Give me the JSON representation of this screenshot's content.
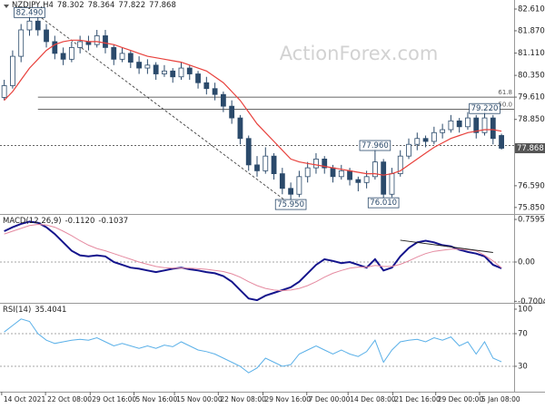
{
  "chart_data": [
    {
      "type": "candlestick",
      "title": "NZDJPY,H4",
      "header_values": [
        78.302,
        78.364,
        77.822,
        77.868
      ],
      "watermark": "ActionForex.com",
      "xlim": [
        -0.5,
        60.5
      ],
      "ylim": [
        75.628,
        82.826
      ],
      "yticks": [
        {
          "value": 82.61,
          "label": "82.610"
        },
        {
          "value": 81.87,
          "label": "81.870"
        },
        {
          "value": 81.11,
          "label": "81.110"
        },
        {
          "value": 80.35,
          "label": "80.350"
        },
        {
          "value": 79.61,
          "label": "79.610"
        },
        {
          "value": 78.85,
          "label": "78.850"
        },
        {
          "value": 76.59,
          "label": "76.590"
        },
        {
          "value": 75.85,
          "label": "75.850"
        }
      ],
      "last_price": 77.868,
      "up_color": "#ffffff",
      "down_color": "#2b4a6b",
      "wick_color": "#2b4a6b",
      "open": [
        79.6,
        80.0,
        81.0,
        81.9,
        82.2,
        81.9,
        81.5,
        81.1,
        80.9,
        81.3,
        81.5,
        81.4,
        81.7,
        81.3,
        80.9,
        81.1,
        80.8,
        80.6,
        80.7,
        80.4,
        80.5,
        80.3,
        80.6,
        80.4,
        80.1,
        79.9,
        79.7,
        79.3,
        78.9,
        78.2,
        77.3,
        77.1,
        77.6,
        77.0,
        76.5,
        76.3,
        76.9,
        77.2,
        77.5,
        77.2,
        76.9,
        77.1,
        76.8,
        76.7,
        76.9,
        77.4,
        76.3,
        77.0,
        77.6,
        78.0,
        78.2,
        78.1,
        78.4,
        78.5,
        78.8,
        78.6,
        78.9,
        78.4,
        78.9,
        78.302
      ],
      "high": [
        80.2,
        81.2,
        82.1,
        82.49,
        82.4,
        82.1,
        81.7,
        81.3,
        81.5,
        81.7,
        81.7,
        81.9,
        81.9,
        81.4,
        81.3,
        81.2,
        81.0,
        80.9,
        80.8,
        80.7,
        80.6,
        80.8,
        80.7,
        80.5,
        80.3,
        80.1,
        79.8,
        79.5,
        79.0,
        78.3,
        77.6,
        77.9,
        77.7,
        77.2,
        76.7,
        77.1,
        77.4,
        77.7,
        77.6,
        77.3,
        77.3,
        77.2,
        76.9,
        77.1,
        77.96,
        77.5,
        77.2,
        77.8,
        78.2,
        78.4,
        78.3,
        78.6,
        78.7,
        79.0,
        78.9,
        79.1,
        79.0,
        79.22,
        79.0,
        78.364
      ],
      "low": [
        79.5,
        79.9,
        80.8,
        81.7,
        81.7,
        81.3,
        80.9,
        80.7,
        80.8,
        81.1,
        81.2,
        81.3,
        81.1,
        80.7,
        80.8,
        80.6,
        80.4,
        80.4,
        80.2,
        80.3,
        80.1,
        80.2,
        80.2,
        79.9,
        79.7,
        79.5,
        79.1,
        78.7,
        78.0,
        77.1,
        76.9,
        77.0,
        76.8,
        76.3,
        75.95,
        76.2,
        76.7,
        77.0,
        77.0,
        76.7,
        76.8,
        76.6,
        76.4,
        76.5,
        76.8,
        76.01,
        76.2,
        76.9,
        77.5,
        77.8,
        77.9,
        78.0,
        78.2,
        78.4,
        78.4,
        78.5,
        78.2,
        78.3,
        78.0,
        77.822
      ],
      "close": [
        80.0,
        81.0,
        81.9,
        82.2,
        81.9,
        81.5,
        81.1,
        80.9,
        81.3,
        81.5,
        81.4,
        81.7,
        81.3,
        80.9,
        81.1,
        80.8,
        80.6,
        80.7,
        80.4,
        80.5,
        80.3,
        80.6,
        80.4,
        80.1,
        79.9,
        79.7,
        79.3,
        78.9,
        78.2,
        77.3,
        77.1,
        77.6,
        77.0,
        76.5,
        76.3,
        76.9,
        77.2,
        77.5,
        77.2,
        76.9,
        77.1,
        76.8,
        76.7,
        76.9,
        77.4,
        76.3,
        77.0,
        77.6,
        78.0,
        78.2,
        78.1,
        78.4,
        78.5,
        78.8,
        78.6,
        78.9,
        78.4,
        78.9,
        78.2,
        77.868
      ],
      "overlay": {
        "color": "#e8413c",
        "values": [
          79.5,
          79.8,
          80.2,
          80.6,
          80.9,
          81.2,
          81.4,
          81.5,
          81.55,
          81.55,
          81.5,
          81.5,
          81.45,
          81.4,
          81.3,
          81.2,
          81.1,
          81.0,
          80.95,
          80.9,
          80.85,
          80.8,
          80.7,
          80.6,
          80.5,
          80.3,
          80.1,
          79.8,
          79.5,
          79.1,
          78.7,
          78.4,
          78.1,
          77.8,
          77.5,
          77.4,
          77.35,
          77.3,
          77.25,
          77.2,
          77.15,
          77.1,
          77.05,
          77.0,
          77.0,
          76.95,
          77.0,
          77.1,
          77.3,
          77.5,
          77.7,
          77.9,
          78.05,
          78.2,
          78.3,
          78.4,
          78.45,
          78.5,
          78.5,
          78.45
        ]
      },
      "hlines": [
        {
          "value": 79.61,
          "label": "61.8",
          "start": 4
        },
        {
          "value": 79.2,
          "label": "50.0",
          "start": 4
        }
      ],
      "dashed_level": 77.96,
      "trendline": {
        "x": [
          4,
          34
        ],
        "y": [
          82.4,
          75.95
        ]
      },
      "points": [
        {
          "x": 3,
          "y": 82.49,
          "label": "82.490"
        },
        {
          "x": 34,
          "y": 75.95,
          "label": "75.950"
        },
        {
          "x": 44,
          "y": 77.96,
          "label": "77.960"
        },
        {
          "x": 45,
          "y": 76.01,
          "label": "76.010"
        },
        {
          "x": 57,
          "y": 79.22,
          "label": "79.220"
        }
      ]
    },
    {
      "type": "line",
      "title": "MACD(12,26,9)",
      "header_values": [
        {
          "value": -0.112,
          "label": "-0.1120"
        },
        -0.1037
      ],
      "xlim": [
        -0.5,
        60.5
      ],
      "ylim": [
        -0.711,
        0.824
      ],
      "yticks": [
        0.7595,
        {
          "value": 0,
          "label": "0.00"
        },
        -0.7004
      ],
      "zero_line": 0,
      "series": [
        {
          "color": "#14148c",
          "width": 2,
          "values": [
            0.55,
            0.62,
            0.68,
            0.72,
            0.7,
            0.62,
            0.5,
            0.35,
            0.2,
            0.12,
            0.1,
            0.12,
            0.1,
            0.0,
            -0.05,
            -0.1,
            -0.12,
            -0.15,
            -0.18,
            -0.15,
            -0.12,
            -0.1,
            -0.13,
            -0.15,
            -0.18,
            -0.2,
            -0.25,
            -0.35,
            -0.5,
            -0.65,
            -0.68,
            -0.6,
            -0.55,
            -0.5,
            -0.45,
            -0.35,
            -0.2,
            -0.05,
            0.05,
            0.02,
            -0.02,
            0.0,
            -0.05,
            -0.1,
            0.05,
            -0.15,
            -0.1,
            0.1,
            0.25,
            0.35,
            0.38,
            0.35,
            0.3,
            0.28,
            0.22,
            0.18,
            0.15,
            0.1,
            -0.05,
            -0.112
          ]
        },
        {
          "color": "#e58aa0",
          "width": 1,
          "values": [
            0.5,
            0.55,
            0.6,
            0.65,
            0.67,
            0.66,
            0.62,
            0.55,
            0.47,
            0.38,
            0.3,
            0.24,
            0.2,
            0.15,
            0.1,
            0.05,
            0.0,
            -0.04,
            -0.08,
            -0.1,
            -0.11,
            -0.11,
            -0.11,
            -0.12,
            -0.13,
            -0.15,
            -0.17,
            -0.21,
            -0.27,
            -0.35,
            -0.42,
            -0.47,
            -0.5,
            -0.51,
            -0.5,
            -0.47,
            -0.42,
            -0.35,
            -0.27,
            -0.2,
            -0.15,
            -0.11,
            -0.09,
            -0.09,
            -0.06,
            -0.08,
            -0.08,
            -0.04,
            0.02,
            0.09,
            0.15,
            0.19,
            0.21,
            0.23,
            0.23,
            0.22,
            0.2,
            0.12,
            0.02,
            -0.1037
          ]
        }
      ],
      "trendline": {
        "x": [
          47,
          58
        ],
        "y": [
          0.39,
          0.17
        ]
      }
    },
    {
      "type": "line",
      "title": "RSI(14)",
      "header_values": [
        35.4041
      ],
      "xlim": [
        -0.5,
        60.5
      ],
      "ylim": [
        0,
        100
      ],
      "yticks": [
        100,
        70,
        30
      ],
      "levels": [
        70,
        30
      ],
      "series": [
        {
          "color": "#5ab0e8",
          "width": 1,
          "values": [
            72,
            80,
            88,
            85,
            70,
            62,
            58,
            60,
            62,
            63,
            62,
            65,
            60,
            55,
            58,
            55,
            52,
            55,
            52,
            56,
            54,
            60,
            55,
            50,
            48,
            45,
            40,
            35,
            30,
            22,
            28,
            40,
            35,
            30,
            32,
            45,
            50,
            55,
            50,
            45,
            50,
            45,
            42,
            48,
            62,
            35,
            50,
            60,
            62,
            63,
            60,
            65,
            62,
            66,
            55,
            60,
            45,
            60,
            40,
            35.4041
          ]
        }
      ],
      "xticks": [
        {
          "value": -0.3,
          "label": "14 Oct 2021"
        },
        {
          "value": 4.9,
          "label": "22 Oct 08:00"
        },
        {
          "value": 10.2,
          "label": "29 Oct 16:00"
        },
        {
          "value": 15.4,
          "label": "5 Nov 16:00"
        },
        {
          "value": 20.2,
          "label": "15 Nov 00:00"
        },
        {
          "value": 25.4,
          "label": "22 Nov 08:00"
        },
        {
          "value": 30.7,
          "label": "29 Nov 16:00"
        },
        {
          "value": 35.9,
          "label": "7 Dec 00:00"
        },
        {
          "value": 40.8,
          "label": "14 Dec 08:00"
        },
        {
          "value": 46.1,
          "label": "21 Dec 16:00"
        },
        {
          "value": 51.2,
          "label": "29 Dec 00:00"
        },
        {
          "value": 56.4,
          "label": "5 Jan 08:00"
        }
      ]
    }
  ]
}
